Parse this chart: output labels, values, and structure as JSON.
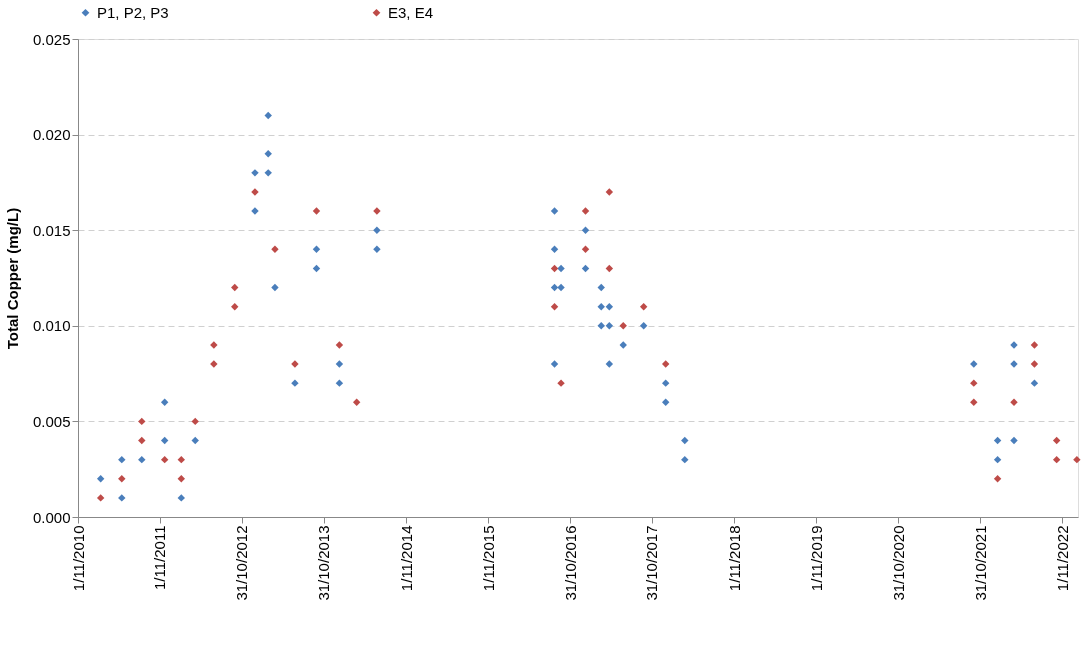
{
  "chart_data": {
    "type": "scatter",
    "ylabel": "Total Copper (mg/L)",
    "marker": "diamond",
    "grid": "y",
    "legend": "top",
    "xlim": [
      "2010-11-01",
      "2023-01-10"
    ],
    "xticks": [
      {
        "value": "2010-11-01",
        "label": "1/11/2010"
      },
      {
        "value": "2011-11-01",
        "label": "1/11/2011"
      },
      {
        "value": "2012-10-31",
        "label": "31/10/2012"
      },
      {
        "value": "2013-10-31",
        "label": "31/10/2013"
      },
      {
        "value": "2014-11-01",
        "label": "1/11/2014"
      },
      {
        "value": "2015-11-01",
        "label": "1/11/2015"
      },
      {
        "value": "2016-10-31",
        "label": "31/10/2016"
      },
      {
        "value": "2017-10-31",
        "label": "31/10/2017"
      },
      {
        "value": "2018-11-01",
        "label": "1/11/2018"
      },
      {
        "value": "2019-11-01",
        "label": "1/11/2019"
      },
      {
        "value": "2020-10-31",
        "label": "31/10/2020"
      },
      {
        "value": "2021-10-31",
        "label": "31/10/2021"
      },
      {
        "value": "2022-11-01",
        "label": "1/11/2022"
      }
    ],
    "ylim": [
      0,
      0.025
    ],
    "yticks": [
      {
        "value": 0,
        "label": "0.000"
      },
      {
        "value": 0.005,
        "label": "0.005"
      },
      {
        "value": 0.01,
        "label": "0.010"
      },
      {
        "value": 0.015,
        "label": "0.015"
      },
      {
        "value": 0.02,
        "label": "0.020"
      },
      {
        "value": 0.025,
        "label": "0.025"
      }
    ],
    "series": [
      {
        "name": "P1, P2, P3",
        "color": "#4a7ebb",
        "x": [
          "2011-02-10",
          "2011-05-15",
          "2011-05-15",
          "2011-08-12",
          "2011-11-22",
          "2011-11-22",
          "2012-02-04",
          "2012-04-06",
          "2012-12-28",
          "2012-12-28",
          "2013-02-25",
          "2013-02-25",
          "2013-02-25",
          "2013-03-27",
          "2013-06-24",
          "2013-09-28",
          "2013-09-28",
          "2014-01-08",
          "2014-01-08",
          "2014-06-24",
          "2014-06-24",
          "2016-08-23",
          "2016-08-23",
          "2016-08-23",
          "2016-08-23",
          "2016-09-21",
          "2016-09-21",
          "2017-01-08",
          "2017-01-08",
          "2017-03-19",
          "2017-03-19",
          "2017-03-19",
          "2017-04-24",
          "2017-04-24",
          "2017-04-24",
          "2017-06-25",
          "2017-09-24",
          "2017-12-31",
          "2017-12-31",
          "2018-03-26",
          "2018-03-26",
          "2021-10-03",
          "2022-01-17",
          "2022-01-17",
          "2022-03-31",
          "2022-03-31",
          "2022-03-31",
          "2022-06-30"
        ],
        "values": [
          0.002,
          0.001,
          0.003,
          0.003,
          0.006,
          0.004,
          0.001,
          0.004,
          0.018,
          0.016,
          0.021,
          0.019,
          0.018,
          0.012,
          0.007,
          0.014,
          0.013,
          0.008,
          0.007,
          0.015,
          0.014,
          0.016,
          0.014,
          0.012,
          0.008,
          0.013,
          0.012,
          0.015,
          0.013,
          0.012,
          0.011,
          0.01,
          0.011,
          0.01,
          0.008,
          0.009,
          0.01,
          0.007,
          0.006,
          0.004,
          0.003,
          0.008,
          0.004,
          0.003,
          0.009,
          0.008,
          0.004,
          0.007
        ]
      },
      {
        "name": "E3, E4",
        "color": "#be4b48",
        "x": [
          "2011-02-10",
          "2011-05-15",
          "2011-08-12",
          "2011-08-12",
          "2011-11-22",
          "2012-02-04",
          "2012-02-04",
          "2012-04-06",
          "2012-06-28",
          "2012-06-28",
          "2012-09-29",
          "2012-09-29",
          "2012-12-28",
          "2013-03-27",
          "2013-06-24",
          "2013-09-28",
          "2014-01-08",
          "2014-03-26",
          "2014-06-24",
          "2016-08-23",
          "2016-08-23",
          "2016-09-21",
          "2017-01-08",
          "2017-01-08",
          "2017-04-24",
          "2017-04-24",
          "2017-06-25",
          "2017-09-24",
          "2017-12-31",
          "2021-10-03",
          "2021-10-03",
          "2022-01-17",
          "2022-03-31",
          "2022-06-30",
          "2022-06-30",
          "2022-10-07",
          "2022-10-07",
          "2023-01-05"
        ],
        "values": [
          0.001,
          0.002,
          0.005,
          0.004,
          0.003,
          0.003,
          0.002,
          0.005,
          0.009,
          0.008,
          0.012,
          0.011,
          0.017,
          0.014,
          0.008,
          0.016,
          0.009,
          0.006,
          0.016,
          0.013,
          0.011,
          0.007,
          0.016,
          0.014,
          0.017,
          0.013,
          0.01,
          0.011,
          0.008,
          0.007,
          0.006,
          0.002,
          0.006,
          0.009,
          0.008,
          0.004,
          0.003,
          0.003
        ]
      }
    ]
  }
}
